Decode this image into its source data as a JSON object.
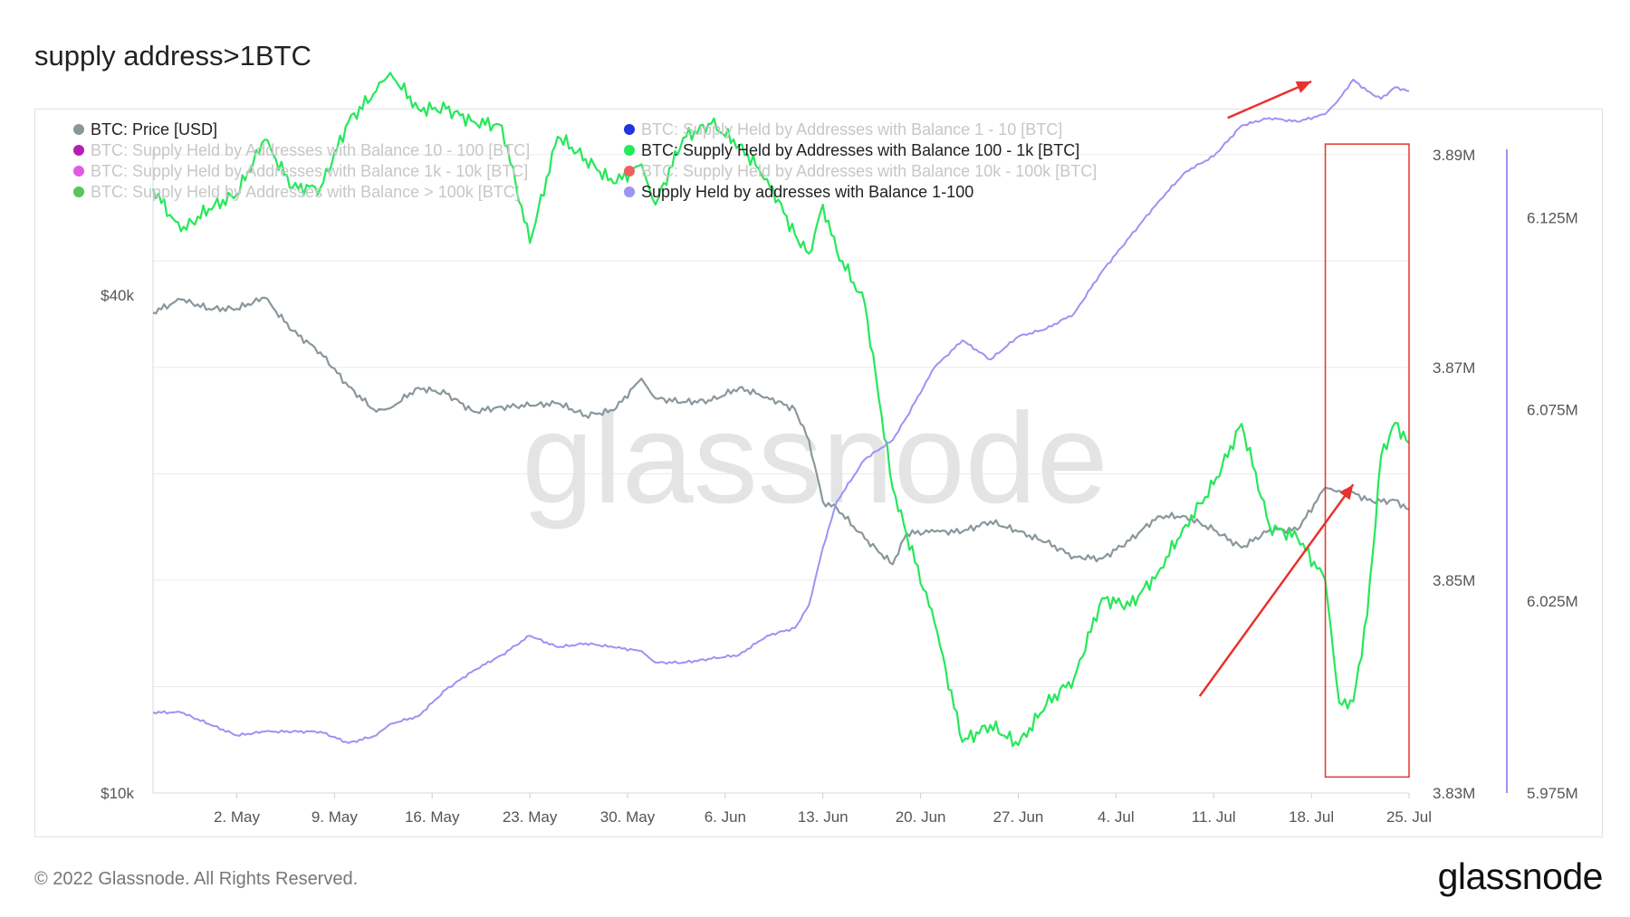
{
  "page": {
    "title": "supply address>1BTC",
    "copyright": "© 2022 Glassnode. All Rights Reserved.",
    "logo_text": "glassnode",
    "watermark": "glassnode"
  },
  "colors": {
    "price": "#8a979c",
    "supply_100_1k": "#25e85a",
    "supply_1_100": "#9b94f2",
    "supply_1_10": "#1f33e0",
    "supply_10_100": "#b51db5",
    "supply_1k_10k": "#e25ae2",
    "supply_10k_100k": "#f06060",
    "supply_gt_100k": "#58c45a",
    "annotation": "#e8322d"
  },
  "chart_data": {
    "type": "line",
    "legend_position": "top-left",
    "legend": [
      {
        "label": "BTC: Price [USD]",
        "color": "#8a979c",
        "active": true
      },
      {
        "label": "BTC: Supply Held by Addresses with Balance 1 - 10 [BTC]",
        "color": "#1f33e0",
        "active": false
      },
      {
        "label": "BTC: Supply Held by Addresses with Balance 10 - 100 [BTC]",
        "color": "#b51db5",
        "active": false
      },
      {
        "label": "BTC: Supply Held by Addresses with Balance 100 - 1k [BTC]",
        "color": "#25e85a",
        "active": true
      },
      {
        "label": "BTC: Supply Held by Addresses with Balance 1k - 10k [BTC]",
        "color": "#e25ae2",
        "active": false
      },
      {
        "label": "BTC: Supply Held by Addresses with Balance 10k - 100k [BTC]",
        "color": "#f06060",
        "active": false
      },
      {
        "label": "BTC: Supply Held by Addresses with Balance > 100k [BTC]",
        "color": "#58c45a",
        "active": false
      },
      {
        "label": "Supply Held by addresses with Balance 1-100",
        "color": "#9b94f2",
        "active": true
      }
    ],
    "x_ticks": [
      "2. May",
      "9. May",
      "16. May",
      "23. May",
      "30. May",
      "6. Jun",
      "13. Jun",
      "20. Jun",
      "27. Jun",
      "4. Jul",
      "11. Jul",
      "18. Jul",
      "25. Jul"
    ],
    "x_range": [
      "2022-04-26",
      "2022-07-25"
    ],
    "axes": {
      "price": {
        "scale": "log",
        "ticks": [
          "$40k",
          "$10k"
        ],
        "tick_values": [
          40000,
          10000
        ],
        "range": [
          10000,
          60000
        ]
      },
      "supply_100_1k": {
        "ticks": [
          "3.89M",
          "3.87M",
          "3.85M",
          "3.83M"
        ],
        "range": [
          3.83,
          3.8905
        ]
      },
      "supply_1_100": {
        "ticks": [
          "6.125M",
          "6.075M",
          "6.025M",
          "5.975M"
        ],
        "range": [
          5.975,
          6.1428
        ]
      }
    },
    "series": [
      {
        "name": "BTC: Price [USD]",
        "key": "price",
        "axis": "price",
        "unit": "USD",
        "points": [
          [
            "2022-04-26",
            38100
          ],
          [
            "2022-04-28",
            39500
          ],
          [
            "2022-04-30",
            38500
          ],
          [
            "2022-05-02",
            38500
          ],
          [
            "2022-05-04",
            39700
          ],
          [
            "2022-05-06",
            36200
          ],
          [
            "2022-05-08",
            34100
          ],
          [
            "2022-05-10",
            31000
          ],
          [
            "2022-05-12",
            28900
          ],
          [
            "2022-05-13",
            29200
          ],
          [
            "2022-05-15",
            30900
          ],
          [
            "2022-05-17",
            30400
          ],
          [
            "2022-05-19",
            28900
          ],
          [
            "2022-05-21",
            29300
          ],
          [
            "2022-05-23",
            29400
          ],
          [
            "2022-05-25",
            29600
          ],
          [
            "2022-05-27",
            28600
          ],
          [
            "2022-05-29",
            29000
          ],
          [
            "2022-05-31",
            31700
          ],
          [
            "2022-06-01",
            30000
          ],
          [
            "2022-06-03",
            29700
          ],
          [
            "2022-06-05",
            29800
          ],
          [
            "2022-06-07",
            30900
          ],
          [
            "2022-06-09",
            30100
          ],
          [
            "2022-06-11",
            29100
          ],
          [
            "2022-06-12",
            26700
          ],
          [
            "2022-06-13",
            22500
          ],
          [
            "2022-06-14",
            22100
          ],
          [
            "2022-06-16",
            20300
          ],
          [
            "2022-06-18",
            18900
          ],
          [
            "2022-06-19",
            20600
          ],
          [
            "2022-06-21",
            20700
          ],
          [
            "2022-06-23",
            20700
          ],
          [
            "2022-06-25",
            21300
          ],
          [
            "2022-06-27",
            20700
          ],
          [
            "2022-06-29",
            20100
          ],
          [
            "2022-07-01",
            19300
          ],
          [
            "2022-07-03",
            19200
          ],
          [
            "2022-07-05",
            20200
          ],
          [
            "2022-07-07",
            21600
          ],
          [
            "2022-07-09",
            21600
          ],
          [
            "2022-07-11",
            20800
          ],
          [
            "2022-07-13",
            19800
          ],
          [
            "2022-07-15",
            20800
          ],
          [
            "2022-07-17",
            20800
          ],
          [
            "2022-07-19",
            23400
          ],
          [
            "2022-07-20",
            23200
          ],
          [
            "2022-07-21",
            23100
          ],
          [
            "2022-07-22",
            22600
          ],
          [
            "2022-07-23",
            22500
          ],
          [
            "2022-07-24",
            22600
          ],
          [
            "2022-07-25",
            22000
          ]
        ]
      },
      {
        "name": "BTC: Supply Held by Addresses with Balance 100 - 1k [BTC]",
        "key": "supply_100_1k",
        "axis": "supply_100_1k",
        "unit": "M BTC",
        "points": [
          [
            "2022-04-26",
            3.8868
          ],
          [
            "2022-04-28",
            3.8828
          ],
          [
            "2022-04-30",
            3.8849
          ],
          [
            "2022-05-02",
            3.8863
          ],
          [
            "2022-05-04",
            3.8914
          ],
          [
            "2022-05-06",
            3.8869
          ],
          [
            "2022-05-08",
            3.8869
          ],
          [
            "2022-05-10",
            3.8931
          ],
          [
            "2022-05-12",
            3.896
          ],
          [
            "2022-05-13",
            3.8977
          ],
          [
            "2022-05-15",
            3.8943
          ],
          [
            "2022-05-17",
            3.8943
          ],
          [
            "2022-05-19",
            3.8931
          ],
          [
            "2022-05-21",
            3.8927
          ],
          [
            "2022-05-23",
            3.8817
          ],
          [
            "2022-05-25",
            3.8917
          ],
          [
            "2022-05-27",
            3.8896
          ],
          [
            "2022-05-29",
            3.8873
          ],
          [
            "2022-05-31",
            3.8891
          ],
          [
            "2022-06-01",
            3.8853
          ],
          [
            "2022-06-03",
            3.8916
          ],
          [
            "2022-06-05",
            3.8929
          ],
          [
            "2022-06-07",
            3.8909
          ],
          [
            "2022-06-09",
            3.8877
          ],
          [
            "2022-06-11",
            3.8825
          ],
          [
            "2022-06-12",
            3.8807
          ],
          [
            "2022-06-13",
            3.8853
          ],
          [
            "2022-06-14",
            3.8809
          ],
          [
            "2022-06-16",
            3.876
          ],
          [
            "2022-06-18",
            3.8586
          ],
          [
            "2022-06-19",
            3.8543
          ],
          [
            "2022-06-21",
            3.846
          ],
          [
            "2022-06-23",
            3.8348
          ],
          [
            "2022-06-25",
            3.8364
          ],
          [
            "2022-06-27",
            3.8345
          ],
          [
            "2022-06-29",
            3.8383
          ],
          [
            "2022-07-01",
            3.8408
          ],
          [
            "2022-07-03",
            3.8483
          ],
          [
            "2022-07-05",
            3.8476
          ],
          [
            "2022-07-07",
            3.8507
          ],
          [
            "2022-07-09",
            3.8552
          ],
          [
            "2022-07-11",
            3.859
          ],
          [
            "2022-07-13",
            3.8647
          ],
          [
            "2022-07-15",
            3.8551
          ],
          [
            "2022-07-17",
            3.854
          ],
          [
            "2022-07-19",
            3.85
          ],
          [
            "2022-07-20",
            3.8385
          ],
          [
            "2022-07-21",
            3.8386
          ],
          [
            "2022-07-22",
            3.8467
          ],
          [
            "2022-07-23",
            3.8617
          ],
          [
            "2022-07-24",
            3.8648
          ],
          [
            "2022-07-25",
            3.8629
          ]
        ]
      },
      {
        "name": "Supply Held by addresses with Balance 1-100",
        "key": "supply_1_100",
        "axis": "supply_1_100",
        "unit": "M BTC",
        "points": [
          [
            "2022-04-26",
            5.996
          ],
          [
            "2022-04-28",
            5.996
          ],
          [
            "2022-04-30",
            5.993
          ],
          [
            "2022-05-02",
            5.99
          ],
          [
            "2022-05-04",
            5.991
          ],
          [
            "2022-05-06",
            5.991
          ],
          [
            "2022-05-08",
            5.991
          ],
          [
            "2022-05-10",
            5.988
          ],
          [
            "2022-05-12",
            5.99
          ],
          [
            "2022-05-13",
            5.993
          ],
          [
            "2022-05-15",
            5.995
          ],
          [
            "2022-05-17",
            6.002
          ],
          [
            "2022-05-19",
            6.007
          ],
          [
            "2022-05-21",
            6.011
          ],
          [
            "2022-05-23",
            6.016
          ],
          [
            "2022-05-25",
            6.013
          ],
          [
            "2022-05-27",
            6.014
          ],
          [
            "2022-05-29",
            6.013
          ],
          [
            "2022-05-31",
            6.012
          ],
          [
            "2022-06-01",
            6.009
          ],
          [
            "2022-06-03",
            6.009
          ],
          [
            "2022-06-05",
            6.01
          ],
          [
            "2022-06-07",
            6.011
          ],
          [
            "2022-06-09",
            6.016
          ],
          [
            "2022-06-11",
            6.018
          ],
          [
            "2022-06-12",
            6.024
          ],
          [
            "2022-06-13",
            6.039
          ],
          [
            "2022-06-14",
            6.051
          ],
          [
            "2022-06-16",
            6.062
          ],
          [
            "2022-06-18",
            6.067
          ],
          [
            "2022-06-19",
            6.073
          ],
          [
            "2022-06-21",
            6.086
          ],
          [
            "2022-06-23",
            6.093
          ],
          [
            "2022-06-25",
            6.088
          ],
          [
            "2022-06-27",
            6.094
          ],
          [
            "2022-06-29",
            6.096
          ],
          [
            "2022-07-01",
            6.1
          ],
          [
            "2022-07-03",
            6.111
          ],
          [
            "2022-07-05",
            6.12
          ],
          [
            "2022-07-07",
            6.129
          ],
          [
            "2022-07-09",
            6.137
          ],
          [
            "2022-07-11",
            6.141
          ],
          [
            "2022-07-13",
            6.149
          ],
          [
            "2022-07-15",
            6.151
          ],
          [
            "2022-07-17",
            6.15
          ],
          [
            "2022-07-19",
            6.152
          ],
          [
            "2022-07-20",
            6.156
          ],
          [
            "2022-07-21",
            6.161
          ],
          [
            "2022-07-22",
            6.158
          ],
          [
            "2022-07-23",
            6.156
          ],
          [
            "2022-07-24",
            6.159
          ],
          [
            "2022-07-25",
            6.158
          ]
        ]
      }
    ],
    "annotations": [
      {
        "type": "arrow",
        "from": [
          "2022-07-10",
          3.8391
        ],
        "to": [
          "2022-07-21",
          3.859
        ],
        "axis": "supply_100_1k"
      },
      {
        "type": "arrow",
        "from": [
          "2022-07-12",
          6.151
        ],
        "to": [
          "2022-07-18",
          6.1605
        ],
        "axis": "supply_1_100"
      },
      {
        "type": "box",
        "from": [
          "2022-07-19",
          3.8315
        ],
        "to": [
          "2022-07-25",
          3.891
        ],
        "axis": "supply_100_1k"
      }
    ]
  }
}
